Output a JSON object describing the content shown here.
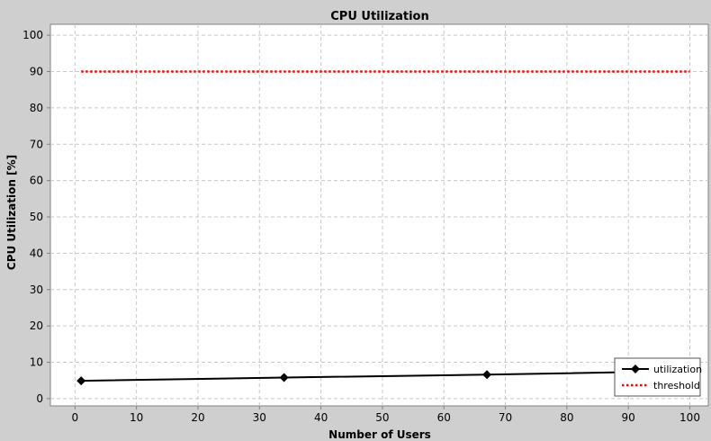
{
  "chart_data": {
    "type": "line",
    "title": "CPU Utilization",
    "xlabel": "Number of Users",
    "ylabel": "CPU Utilization [%]",
    "xlim": [
      -4,
      103
    ],
    "ylim": [
      -2,
      103
    ],
    "x_ticks": [
      0,
      10,
      20,
      30,
      40,
      50,
      60,
      70,
      80,
      90,
      100
    ],
    "y_ticks": [
      0,
      10,
      20,
      30,
      40,
      50,
      60,
      70,
      80,
      90,
      100
    ],
    "grid": true,
    "legend_position": "bottom-right",
    "series": [
      {
        "name": "utilization",
        "color": "#000000",
        "style": "solid",
        "marker": "diamond",
        "x": [
          1,
          34,
          67,
          100
        ],
        "y": [
          4.9,
          5.8,
          6.6,
          7.6
        ]
      },
      {
        "name": "threshold",
        "color": "#ff0000",
        "style": "dotted",
        "marker": "none",
        "x": [
          1,
          100
        ],
        "y": [
          90,
          90
        ]
      }
    ]
  }
}
